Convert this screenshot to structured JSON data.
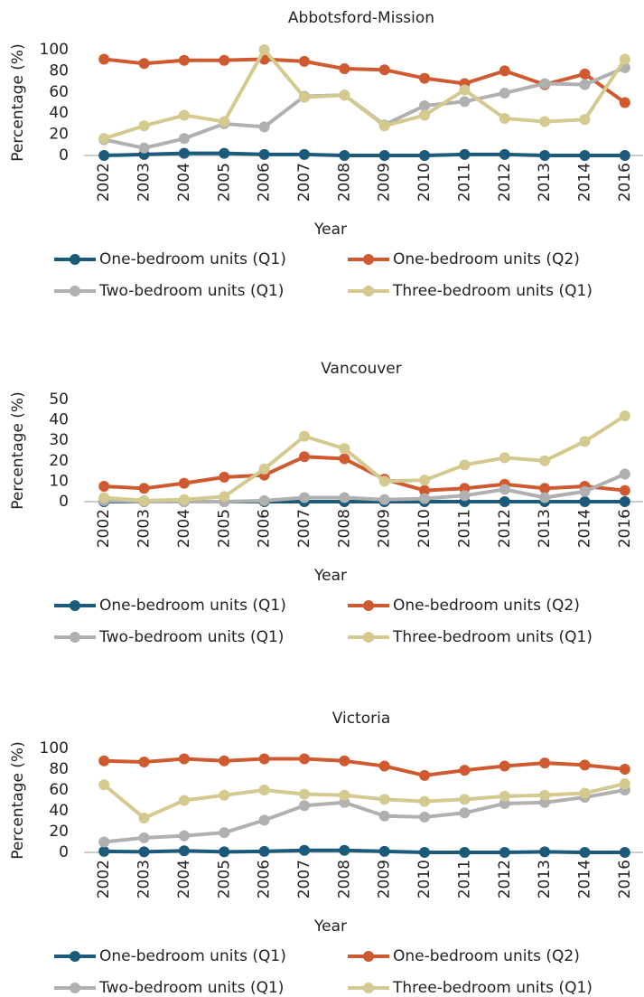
{
  "chart_data": [
    {
      "type": "line",
      "title": "Abbotsford-Mission",
      "x_label": "Year",
      "y_label": "Percentage (%)",
      "categories": [
        "2002",
        "2003",
        "2004",
        "2005",
        "2006",
        "2007",
        "2008",
        "2009",
        "2010",
        "2011",
        "2012",
        "2013",
        "2014",
        "2016"
      ],
      "ylim": [
        0,
        100
      ],
      "yticks": [
        0,
        20,
        40,
        60,
        80,
        100
      ],
      "series": [
        {
          "name": "One-bedroom units (Q1)",
          "color": "#1b5a7a",
          "values": [
            0,
            1,
            2,
            2,
            1,
            1,
            0,
            0,
            0,
            1,
            1,
            0,
            0,
            0
          ]
        },
        {
          "name": "One-bedroom units (Q2)",
          "color": "#d05a30",
          "values": [
            91,
            87,
            90,
            90,
            91,
            89,
            82,
            81,
            73,
            68,
            80,
            67,
            77,
            50
          ]
        },
        {
          "name": "Two-bedroom units (Q1)",
          "color": "#b0b0b0",
          "values": [
            15,
            7,
            16,
            30,
            27,
            56,
            57,
            29,
            47,
            51,
            59,
            68,
            67,
            83
          ]
        },
        {
          "name": "Three-bedroom units (Q1)",
          "color": "#d4c98f",
          "values": [
            16,
            28,
            38,
            32,
            100,
            55,
            57,
            28,
            38,
            62,
            35,
            32,
            34,
            91
          ]
        }
      ]
    },
    {
      "type": "line",
      "title": "Vancouver",
      "x_label": "Year",
      "y_label": "Percentage (%)",
      "categories": [
        "2002",
        "2003",
        "2004",
        "2005",
        "2006",
        "2007",
        "2008",
        "2009",
        "2010",
        "2011",
        "2012",
        "2013",
        "2014",
        "2016"
      ],
      "ylim": [
        0,
        50
      ],
      "yticks": [
        0,
        10,
        20,
        30,
        40,
        50
      ],
      "series": [
        {
          "name": "One-bedroom units (Q1)",
          "color": "#1b5a7a",
          "values": [
            0,
            0,
            0,
            0,
            0,
            0,
            0,
            0,
            0,
            0,
            0,
            0,
            0,
            0
          ]
        },
        {
          "name": "One-bedroom units (Q2)",
          "color": "#d05a30",
          "values": [
            7.5,
            6.5,
            9,
            12,
            13,
            22,
            21,
            11,
            5.5,
            6.5,
            8.5,
            6.5,
            7.5,
            5.5
          ]
        },
        {
          "name": "Two-bedroom units (Q1)",
          "color": "#b0b0b0",
          "values": [
            0.5,
            0,
            0,
            0,
            0.5,
            2,
            2,
            1,
            1.5,
            3,
            6,
            2,
            5,
            13.5
          ]
        },
        {
          "name": "Three-bedroom units (Q1)",
          "color": "#d4c98f",
          "values": [
            2,
            0.5,
            1,
            2.5,
            16,
            32,
            26,
            10,
            10.5,
            18,
            21.5,
            20,
            29.5,
            42
          ]
        }
      ]
    },
    {
      "type": "line",
      "title": "Victoria",
      "x_label": "Year",
      "y_label": "Percentage (%)",
      "categories": [
        "2002",
        "2003",
        "2004",
        "2005",
        "2006",
        "2007",
        "2008",
        "2009",
        "2010",
        "2011",
        "2012",
        "2013",
        "2014",
        "2016"
      ],
      "ylim": [
        0,
        100
      ],
      "yticks": [
        0,
        20,
        40,
        60,
        80,
        100
      ],
      "series": [
        {
          "name": "One-bedroom units (Q1)",
          "color": "#1b5a7a",
          "values": [
            1,
            0.5,
            1.5,
            0.5,
            1,
            2,
            2,
            1,
            0,
            0,
            0,
            0.5,
            0,
            0
          ]
        },
        {
          "name": "One-bedroom units (Q2)",
          "color": "#d05a30",
          "values": [
            88,
            87,
            90,
            88,
            90,
            90,
            88,
            83,
            74,
            79,
            83,
            86,
            84,
            80
          ]
        },
        {
          "name": "Two-bedroom units (Q1)",
          "color": "#b0b0b0",
          "values": [
            10,
            14,
            16,
            19,
            31,
            45,
            48,
            35,
            34,
            38,
            47,
            48,
            53,
            60
          ]
        },
        {
          "name": "Three-bedroom units (Q1)",
          "color": "#d4c98f",
          "values": [
            65,
            33,
            50,
            55,
            60,
            56,
            55,
            51,
            49,
            51,
            54,
            55,
            57,
            66
          ]
        }
      ]
    }
  ]
}
